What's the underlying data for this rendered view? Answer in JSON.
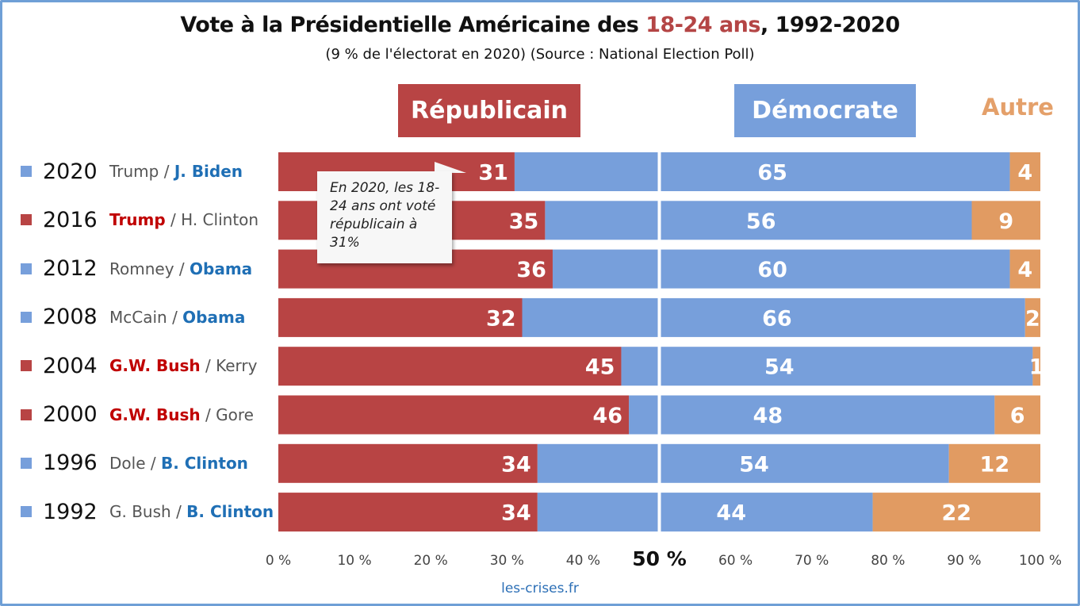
{
  "header": {
    "title_prefix": "Vote à la Présidentielle Américaine des ",
    "title_highlight": "18-24 ans",
    "title_suffix": ", 1992-2020",
    "subtitle": "(9 % de l'électorat en 2020) (Source : National Election Poll)"
  },
  "legend": {
    "republican": "Républicain",
    "democrat": "Démocrate",
    "other": "Autre"
  },
  "colors": {
    "republican": "#b84444",
    "democrat": "#779fdb",
    "other": "#e19b62",
    "winner_r_text": "#c00000",
    "winner_d_text": "#1f6fb5"
  },
  "rows": [
    {
      "year": "2020",
      "rep": "Trump",
      "dem": "J. Biden",
      "winner": "D"
    },
    {
      "year": "2016",
      "rep": "Trump",
      "dem": "H. Clinton",
      "winner": "R"
    },
    {
      "year": "2012",
      "rep": "Romney",
      "dem": "Obama",
      "winner": "D"
    },
    {
      "year": "2008",
      "rep": "McCain",
      "dem": "Obama",
      "winner": "D"
    },
    {
      "year": "2004",
      "rep": "G.W. Bush",
      "dem": "Kerry",
      "winner": "R"
    },
    {
      "year": "2000",
      "rep": "G.W. Bush",
      "dem": "Gore",
      "winner": "R"
    },
    {
      "year": "1996",
      "rep": "Dole",
      "dem": "B. Clinton",
      "winner": "D"
    },
    {
      "year": "1992",
      "rep": "G. Bush",
      "dem": "B. Clinton",
      "winner": "D"
    }
  ],
  "separator": " / ",
  "callout": "En 2020, les 18-24 ans ont voté républicain à 31%",
  "source": "les-crises.fr",
  "chart_data": {
    "type": "bar",
    "orientation": "horizontal",
    "stacked": true,
    "categories": [
      "2020",
      "2016",
      "2012",
      "2008",
      "2004",
      "2000",
      "1996",
      "1992"
    ],
    "series": [
      {
        "name": "Républicain",
        "values": [
          31,
          35,
          36,
          32,
          45,
          46,
          34,
          34
        ]
      },
      {
        "name": "Démocrate",
        "values": [
          65,
          56,
          60,
          66,
          54,
          48,
          54,
          44
        ]
      },
      {
        "name": "Autre",
        "values": [
          4,
          9,
          4,
          2,
          1,
          6,
          12,
          22
        ]
      }
    ],
    "xlim": [
      0,
      100
    ],
    "x_ticks": [
      "0 %",
      "10 %",
      "20 %",
      "30 %",
      "40 %",
      "50 %",
      "60 %",
      "70 %",
      "80 %",
      "90 %",
      "100 %"
    ],
    "midline_value": 50,
    "grid": false,
    "legend_position": "top"
  }
}
